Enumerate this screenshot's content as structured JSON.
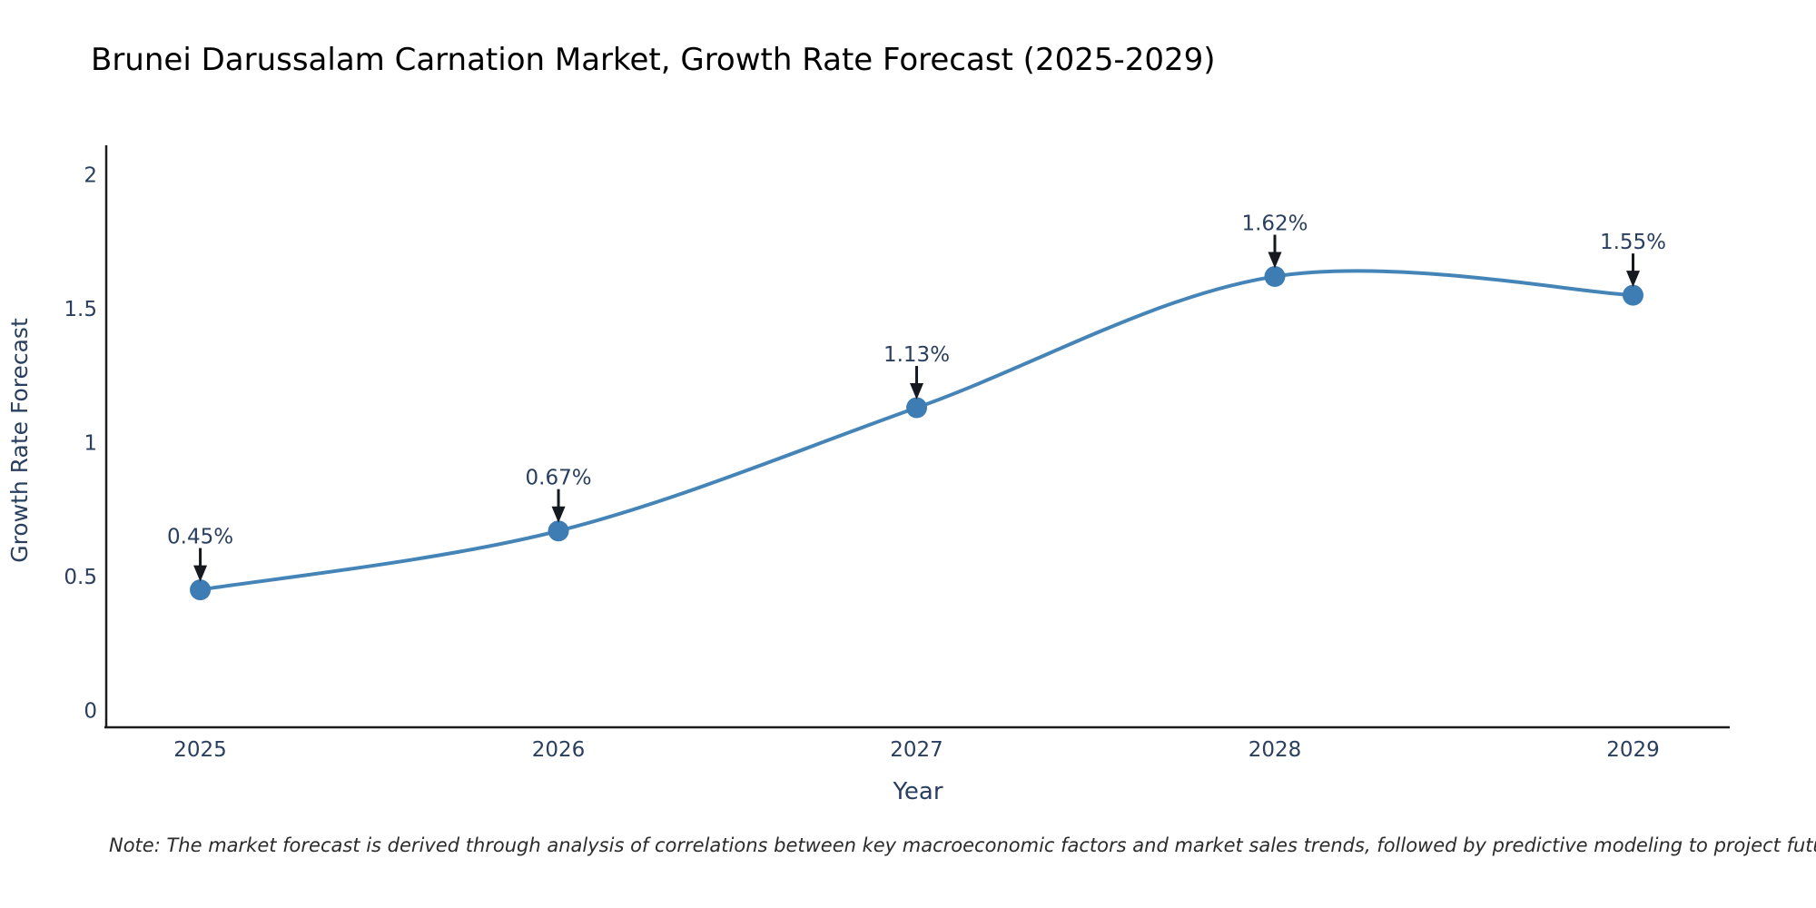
{
  "title": "Brunei Darussalam Carnation Market, Growth Rate Forecast (2025-2029)",
  "note": "Note: The market forecast is derived through analysis of correlations between key macroeconomic factors and market sales trends, followed by predictive modeling to project future sales",
  "chart_data": {
    "type": "line",
    "title": "Brunei Darussalam Carnation Market, Growth Rate Forecast (2025-2029)",
    "xlabel": "Year",
    "ylabel": "Growth Rate Forecast",
    "line_shape": "spline",
    "grid": false,
    "legend_position": "none",
    "x": [
      2025,
      2026,
      2027,
      2028,
      2029
    ],
    "values": [
      0.45,
      0.67,
      1.13,
      1.62,
      1.55
    ],
    "point_labels": [
      "0.45%",
      "0.67%",
      "1.13%",
      "1.62%",
      "1.55%"
    ],
    "x_tick_labels": [
      "2025",
      "2026",
      "2027",
      "2028",
      "2029"
    ],
    "y_ticks": [
      0,
      0.5,
      1,
      1.5,
      2
    ],
    "y_tick_labels": [
      "0",
      "0.5",
      "1",
      "1.5",
      "2"
    ],
    "xlim": [
      2024.74,
      2029.27
    ],
    "ylim": [
      -0.06,
      2.11
    ],
    "colors": {
      "line": "#4584b7",
      "marker": "#3d7db3",
      "text": "#2a3f5f",
      "axis_line": "#1c1c1c",
      "annotation_arrow": "#16191f",
      "note_text": "#2b2b2b",
      "background": "#ffffff"
    }
  }
}
